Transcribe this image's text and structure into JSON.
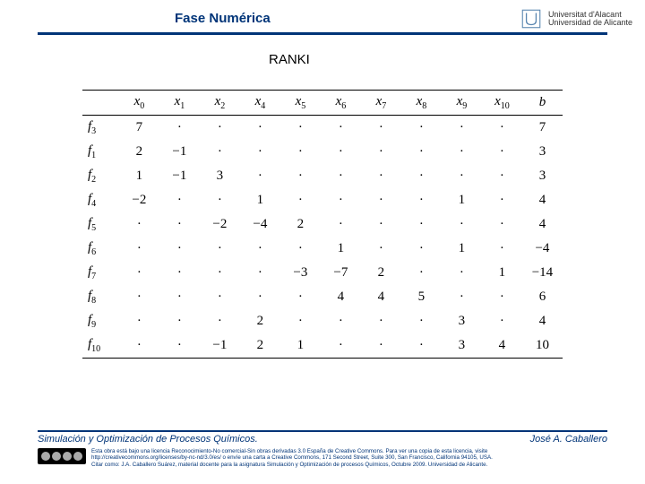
{
  "header": {
    "title": "Fase Numérica",
    "title_color": "#003478",
    "rule_color": "#003478",
    "logo_text1": "Universitat d'Alacant",
    "logo_text2": "Universidad de Alicante"
  },
  "subtitle": "RANKI",
  "table": {
    "font_family": "Times New Roman, serif",
    "header_fontsize": 15,
    "cell_fontsize": 15,
    "border_color": "#000000",
    "columns": [
      "",
      "x_0",
      "x_1",
      "x_2",
      "x_4",
      "x_5",
      "x_6",
      "x_7",
      "x_8",
      "x_9",
      "x_10",
      "b"
    ],
    "row_labels": [
      "f_3",
      "f_1",
      "f_2",
      "f_4",
      "f_5",
      "f_6",
      "f_7",
      "f_8",
      "f_9",
      "f_10"
    ],
    "rows": [
      [
        "7",
        "·",
        "·",
        "·",
        "·",
        "·",
        "·",
        "·",
        "·",
        "·",
        "7"
      ],
      [
        "2",
        "−1",
        "·",
        "·",
        "·",
        "·",
        "·",
        "·",
        "·",
        "·",
        "3"
      ],
      [
        "1",
        "−1",
        "3",
        "·",
        "·",
        "·",
        "·",
        "·",
        "·",
        "·",
        "3"
      ],
      [
        "−2",
        "·",
        "·",
        "1",
        "·",
        "·",
        "·",
        "·",
        "1",
        "·",
        "4"
      ],
      [
        "·",
        "·",
        "−2",
        "−4",
        "2",
        "·",
        "·",
        "·",
        "·",
        "·",
        "4"
      ],
      [
        "·",
        "·",
        "·",
        "·",
        "·",
        "1",
        "·",
        "·",
        "1",
        "·",
        "−4"
      ],
      [
        "·",
        "·",
        "·",
        "·",
        "−3",
        "−7",
        "2",
        "·",
        "·",
        "1",
        "−14"
      ],
      [
        "·",
        "·",
        "·",
        "·",
        "·",
        "4",
        "4",
        "5",
        "·",
        "·",
        "6"
      ],
      [
        "·",
        "·",
        "·",
        "2",
        "·",
        "·",
        "·",
        "·",
        "3",
        "·",
        "4"
      ],
      [
        "·",
        "·",
        "−1",
        "2",
        "1",
        "·",
        "·",
        "·",
        "3",
        "4",
        "10"
      ]
    ]
  },
  "footer": {
    "left": "Simulación y Optimización de Procesos Químicos.",
    "right": "José A. Caballero",
    "rule_color": "#003478",
    "license_line1": "Esta obra está bajo una licencia Reconocimiento-No comercial-Sin obras derivadas 3.0 España de Creative Commons. Para ver una copia de esta licencia, visite",
    "license_line2": "http://creativecommons.org/licenses/by-nc-nd/3.0/es/ o envíe una carta a Creative Commons, 171 Second Street, Suite 300, San Francisco, California 94105, USA.",
    "license_line3": "Citar como: J.A. Caballero Suárez, material docente para la asignatura Simulación y Optimización de procesos Químicos, Octubre 2009. Universidad de Alicante."
  },
  "colors": {
    "background": "#ffffff",
    "primary": "#003478",
    "text": "#000000"
  }
}
